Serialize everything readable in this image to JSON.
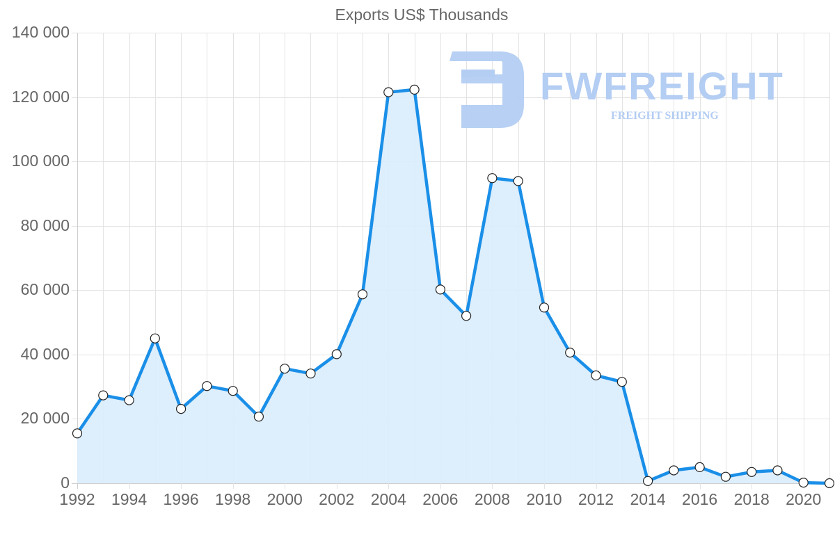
{
  "chart_data": {
    "type": "area",
    "title": "Exports US$ Thousands",
    "xlabel": "",
    "ylabel": "",
    "ylim": [
      0,
      140000
    ],
    "grid": true,
    "legend": null,
    "y_ticks": [
      "0",
      "20 000",
      "40 000",
      "60 000",
      "80 000",
      "100 000",
      "120 000",
      "140 000"
    ],
    "x_ticks": [
      "1992",
      "1994",
      "1996",
      "1998",
      "2000",
      "2002",
      "2004",
      "2006",
      "2008",
      "2010",
      "2012",
      "2014",
      "2016",
      "2018",
      "2020"
    ],
    "x": [
      1992,
      1993,
      1994,
      1995,
      1996,
      1997,
      1998,
      1999,
      2000,
      2001,
      2002,
      2003,
      2004,
      2005,
      2006,
      2007,
      2008,
      2009,
      2010,
      2011,
      2012,
      2013,
      2014,
      2015,
      2016,
      2017,
      2018,
      2019,
      2020,
      2021
    ],
    "series": [
      {
        "name": "Exports US$ Thousands",
        "color": "#1a8fe8",
        "fill": "#d9ecfc",
        "values": [
          15500,
          27300,
          25800,
          45000,
          23100,
          30200,
          28700,
          20700,
          35600,
          34100,
          40100,
          58700,
          121500,
          122300,
          60200,
          52000,
          94800,
          93900,
          54600,
          40600,
          33500,
          31500,
          700,
          4000,
          5000,
          2000,
          3500,
          4000,
          200,
          0
        ]
      }
    ]
  },
  "watermark": {
    "brand": "FWFREIGHT",
    "tagline": "FREIGHT SHIPPING",
    "color": "#b3cdf3"
  }
}
